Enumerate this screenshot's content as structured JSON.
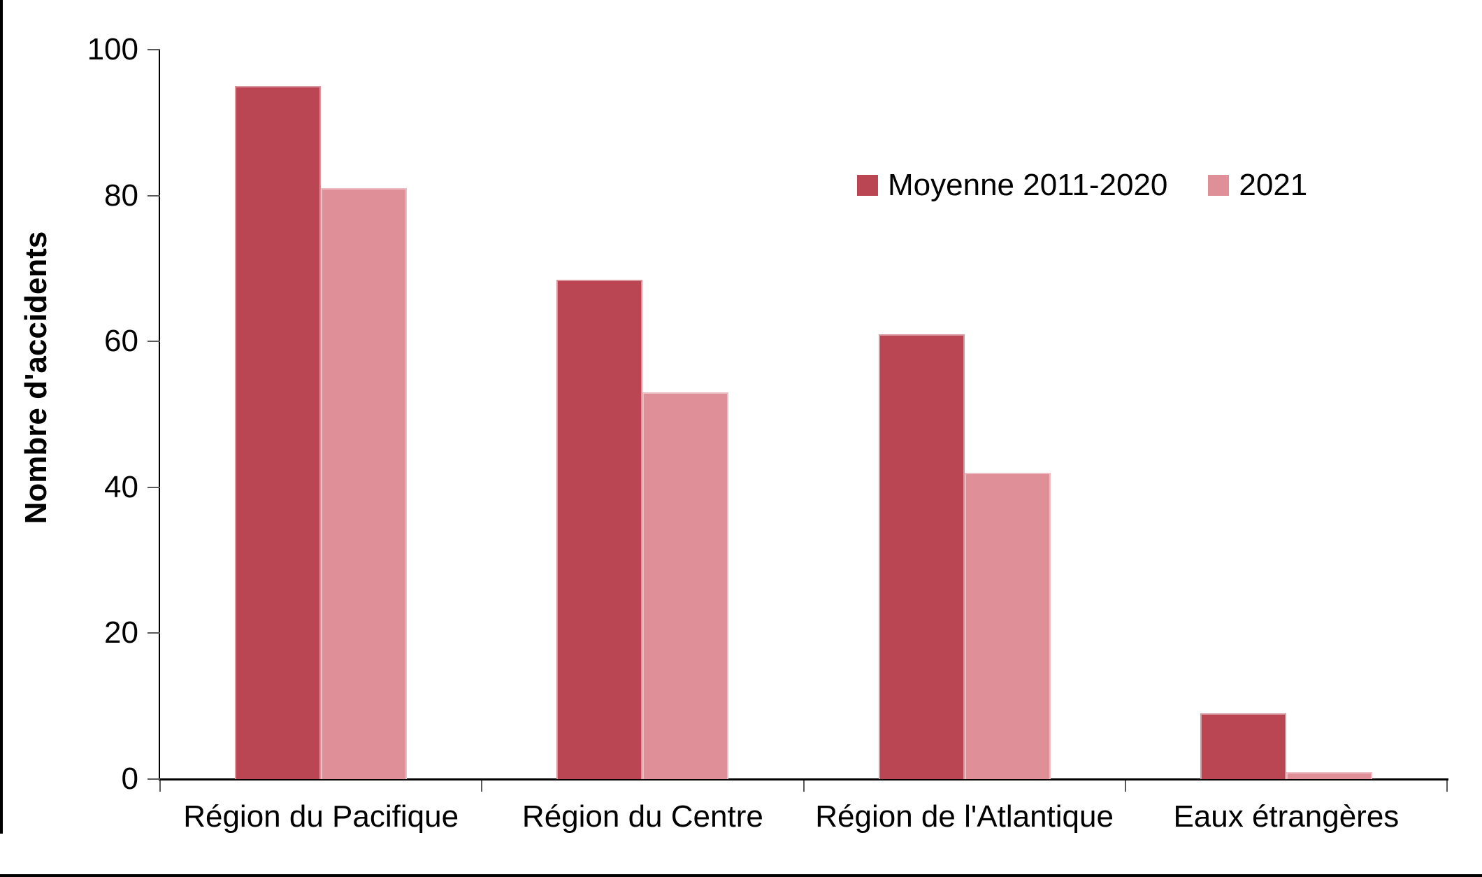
{
  "chart_data": {
    "type": "bar",
    "title": "",
    "xlabel": "",
    "ylabel": "Nombre d'accidents",
    "ylim": [
      0,
      100
    ],
    "yticks": [
      0,
      20,
      40,
      60,
      80,
      100
    ],
    "grid": false,
    "legend_position": "top-right-inside",
    "categories": [
      "Région du Pacifique",
      "Région du Centre",
      "Région de l'Atlantique",
      "Eaux étrangères"
    ],
    "series": [
      {
        "name": "Moyenne 2011-2020",
        "color": "#BA4553",
        "values": [
          95,
          68.5,
          61,
          9
        ]
      },
      {
        "name": "2021",
        "color": "#DE8F97",
        "values": [
          81,
          53,
          42,
          1
        ]
      }
    ]
  },
  "colors": {
    "axis": "#000000",
    "tick": "#595959",
    "text": "#000000",
    "background": "#ffffff",
    "page_border": "#000000"
  }
}
